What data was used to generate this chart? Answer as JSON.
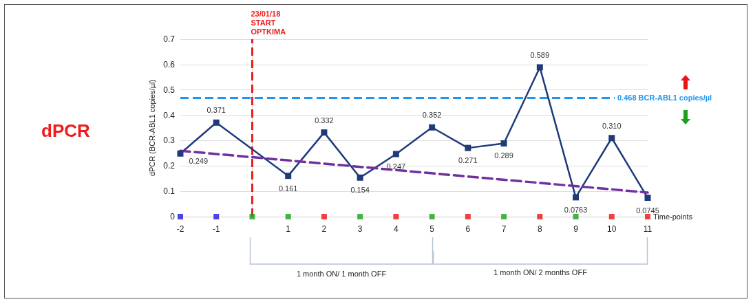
{
  "chart_data": {
    "type": "line",
    "title": "dPCR",
    "xlabel": "Time-points",
    "ylabel": "dPCR (BCR-ABL1 copies/µl)",
    "xlim": [
      -2,
      11
    ],
    "xticks": [
      -2,
      -1,
      1,
      2,
      3,
      4,
      5,
      6,
      7,
      8,
      9,
      10,
      11
    ],
    "ylim": [
      0,
      0.7
    ],
    "yticks": [
      0,
      0.1,
      0.2,
      0.3,
      0.4,
      0.5,
      0.6,
      0.7
    ],
    "grid": "y",
    "series": [
      {
        "color": "#1f3a7a",
        "marker": "square",
        "line_style": "solid",
        "x": [
          -2,
          -1,
          1,
          2,
          3,
          4,
          5,
          6,
          7,
          8,
          9,
          10,
          11
        ],
        "values": [
          0.249,
          0.371,
          0.161,
          0.332,
          0.154,
          0.247,
          0.352,
          0.271,
          0.289,
          0.589,
          0.0763,
          0.31,
          0.0745
        ],
        "value_labels": [
          "0.249",
          "0.371",
          "0.161",
          "0.332",
          "0.154",
          "0.247",
          "0.352",
          "0.271",
          "0.289",
          "0.589",
          "0.0763",
          "0.310",
          "0.0745"
        ]
      },
      {
        "color": "#7030a0",
        "marker": "none",
        "line_style": "dashed",
        "x": [
          -2,
          11
        ],
        "values": [
          0.26,
          0.095
        ]
      },
      {
        "type": "scatter",
        "marker": "square",
        "x": [
          -2,
          -1,
          0,
          1,
          2,
          3,
          4,
          5,
          6,
          7,
          8,
          9,
          10,
          11
        ],
        "values": [
          0,
          0,
          0,
          0,
          0,
          0,
          0,
          0,
          0,
          0,
          0,
          0,
          0,
          0
        ],
        "colors": [
          "#1a1adf",
          "#1a1adf",
          "#1aa01a",
          "#1aa01a",
          "#ee1111",
          "#1aa01a",
          "#ee1111",
          "#1aa01a",
          "#ee1111",
          "#1aa01a",
          "#ee1111",
          "#1aa01a",
          "#ee1111",
          "#ee1111"
        ]
      }
    ],
    "ref_lines": [
      {
        "axis": "x",
        "value": 0,
        "label": "23/01/18\nSTART\nOPTKIMA",
        "color": "#ee1c1c",
        "line_style": "dashed"
      },
      {
        "axis": "y",
        "value": 0.468,
        "label": "0.468 BCR-ABL1 copies/µl",
        "color": "#1e96f0",
        "line_style": "dashed"
      }
    ],
    "annotations": [
      "1 month ON/ 1 month OFF",
      "1 month ON/ 2 months OFF"
    ]
  }
}
